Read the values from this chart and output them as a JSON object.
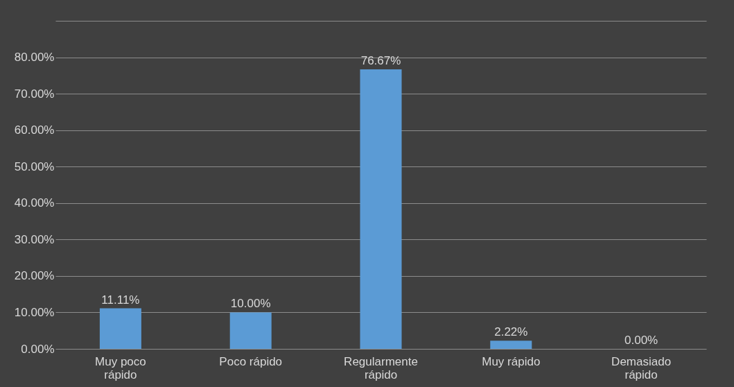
{
  "chart_data": {
    "type": "bar",
    "categories": [
      "Muy poco rápido",
      "Poco rápido",
      "Regularmente rápido",
      "Muy rápido",
      "Demasiado rápido"
    ],
    "values": [
      11.11,
      10.0,
      76.67,
      2.22,
      0.0
    ],
    "value_labels": [
      "11.11%",
      "10.00%",
      "76.67%",
      "2.22%",
      "0.00%"
    ],
    "color": "#5b9bd5",
    "ylim": [
      0,
      90
    ],
    "yticks": [
      {
        "value": 0,
        "label": "0.00%"
      },
      {
        "value": 10,
        "label": "10.00%"
      },
      {
        "value": 20,
        "label": "20.00%"
      },
      {
        "value": 30,
        "label": "30.00%"
      },
      {
        "value": 40,
        "label": "40.00%"
      },
      {
        "value": 50,
        "label": "50.00%"
      },
      {
        "value": 60,
        "label": "60.00%"
      },
      {
        "value": 70,
        "label": "70.00%"
      },
      {
        "value": 80,
        "label": "80.00%"
      },
      {
        "value": 90,
        "label": null
      }
    ],
    "grid": "y"
  }
}
